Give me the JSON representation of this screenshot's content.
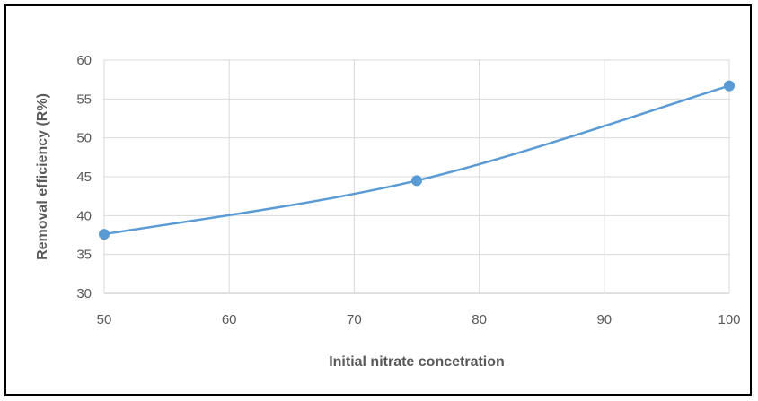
{
  "chart_data": {
    "type": "line",
    "xlabel": "Initial  nitrate concetration",
    "ylabel": "Removal efficiency  (R%)",
    "xlim": [
      50,
      100
    ],
    "ylim": [
      30,
      60
    ],
    "xticks": [
      50,
      60,
      70,
      80,
      90,
      100
    ],
    "yticks": [
      30,
      35,
      40,
      45,
      50,
      55,
      60
    ],
    "grid": true,
    "smooth": true,
    "series": [
      {
        "x": [
          50,
          75,
          100
        ],
        "y": [
          37.6,
          44.5,
          56.7
        ],
        "color": "#5b9bd5"
      }
    ]
  }
}
